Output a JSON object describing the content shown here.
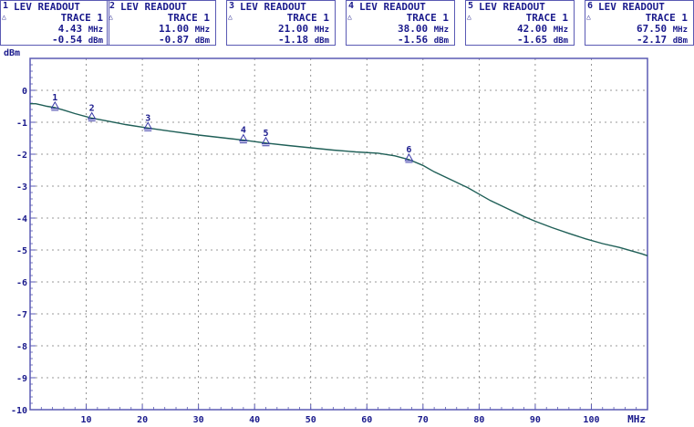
{
  "readouts": [
    {
      "index": "1",
      "title": "LEV READOUT",
      "trace": "TRACE 1",
      "freq": "4.43",
      "freq_unit": "MHz",
      "level": "-0.54",
      "level_unit": "dBm"
    },
    {
      "index": "2",
      "title": "LEV READOUT",
      "trace": "TRACE 1",
      "freq": "11.00",
      "freq_unit": "MHz",
      "level": "-0.87",
      "level_unit": "dBm"
    },
    {
      "index": "3",
      "title": "LEV READOUT",
      "trace": "TRACE 1",
      "freq": "21.00",
      "freq_unit": "MHz",
      "level": "-1.18",
      "level_unit": "dBm"
    },
    {
      "index": "4",
      "title": "LEV READOUT",
      "trace": "TRACE 1",
      "freq": "38.00",
      "freq_unit": "MHz",
      "level": "-1.56",
      "level_unit": "dBm"
    },
    {
      "index": "5",
      "title": "LEV READOUT",
      "trace": "TRACE 1",
      "freq": "42.00",
      "freq_unit": "MHz",
      "level": "-1.65",
      "level_unit": "dBm"
    },
    {
      "index": "6",
      "title": "LEV READOUT",
      "trace": "TRACE 1",
      "freq": "67.50",
      "freq_unit": "MHz",
      "level": "-2.17",
      "level_unit": "dBm"
    }
  ],
  "chart_data": {
    "type": "line",
    "ylabel": "dBm",
    "xunit": "MHz",
    "xlim": [
      0,
      110
    ],
    "ylim": [
      -10,
      1
    ],
    "x_ticks": [
      10,
      20,
      30,
      40,
      50,
      60,
      70,
      80,
      90,
      100
    ],
    "y_ticks": [
      0,
      -1,
      -2,
      -3,
      -4,
      -5,
      -6,
      -7,
      -8,
      -9,
      -10
    ],
    "grid": true,
    "series": [
      {
        "x": [
          0,
          1,
          2,
          3,
          4.43,
          6,
          8,
          11,
          14,
          17,
          21,
          25,
          30,
          35,
          38,
          42,
          46,
          50,
          54,
          58,
          62,
          65,
          67.5,
          70,
          72,
          75,
          78,
          80,
          82,
          85,
          88,
          90,
          93,
          96,
          99,
          102,
          105,
          107,
          109,
          110
        ],
        "y": [
          -0.42,
          -0.42,
          -0.46,
          -0.5,
          -0.54,
          -0.62,
          -0.73,
          -0.87,
          -0.97,
          -1.07,
          -1.18,
          -1.28,
          -1.4,
          -1.5,
          -1.56,
          -1.65,
          -1.73,
          -1.8,
          -1.87,
          -1.93,
          -1.97,
          -2.05,
          -2.17,
          -2.35,
          -2.55,
          -2.8,
          -3.05,
          -3.25,
          -3.45,
          -3.7,
          -3.95,
          -4.1,
          -4.3,
          -4.48,
          -4.65,
          -4.8,
          -4.92,
          -5.02,
          -5.12,
          -5.18
        ],
        "color": "#1f5f57"
      }
    ],
    "markers": [
      {
        "label": "1",
        "x": 4.43,
        "y": -0.54
      },
      {
        "label": "2",
        "x": 11.0,
        "y": -0.87
      },
      {
        "label": "3",
        "x": 21.0,
        "y": -1.18
      },
      {
        "label": "4",
        "x": 38.0,
        "y": -1.56
      },
      {
        "label": "5",
        "x": 42.0,
        "y": -1.65
      },
      {
        "label": "6",
        "x": 67.5,
        "y": -2.17
      }
    ]
  }
}
